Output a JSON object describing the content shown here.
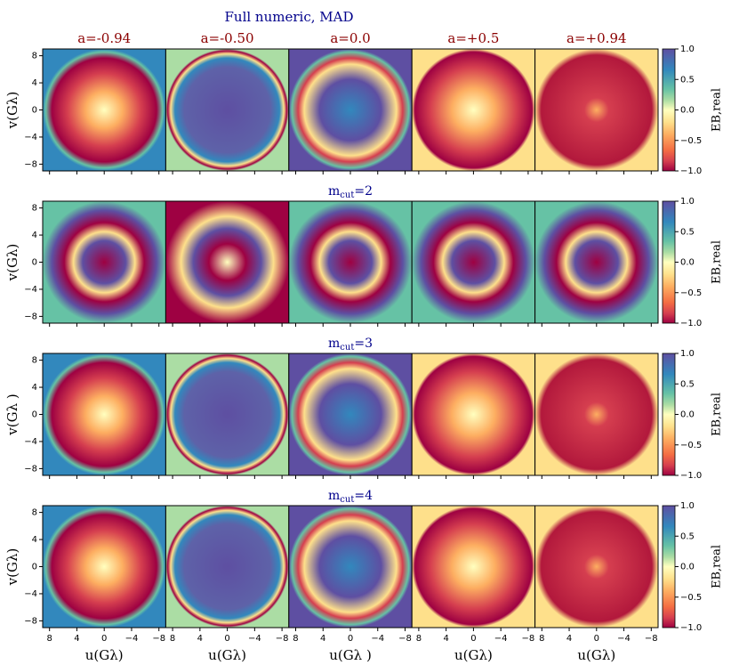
{
  "chart_data": {
    "type": "heatmap",
    "title": "Full numeric, MAD",
    "columns": [
      "a=-0.94",
      "a=-0.50",
      "a=0.0",
      "a=+0.5",
      "a=+0.94"
    ],
    "rows": [
      {
        "ylabel": "v(Gλ)"
      },
      {
        "title": {
          "base": "m",
          "sub": "cut",
          "rest": "=2"
        },
        "ylabel": "v(Gλ)"
      },
      {
        "title": {
          "base": "m",
          "sub": "cut",
          "rest": "=3"
        },
        "ylabel": "v(Gλ )"
      },
      {
        "title": {
          "base": "m",
          "sub": "cut",
          "rest": "=4"
        },
        "ylabel": "v(Gλ)"
      }
    ],
    "xlabels": [
      "u(Gλ)",
      "u(Gλ)",
      "u(Gλ )",
      "u(Gλ)",
      "u(Gλ)"
    ],
    "xlim": [
      9,
      -9
    ],
    "xticks": [
      8,
      4,
      0,
      {
        "value": -4,
        "label": "−4"
      },
      {
        "value": -8,
        "label": "−8"
      }
    ],
    "ylim": [
      -9,
      9
    ],
    "yticks": [
      8,
      4,
      0,
      {
        "value": -4,
        "label": "−4"
      },
      {
        "value": -8,
        "label": "−8"
      }
    ],
    "colorbar": {
      "label": "EB,real",
      "lim": [
        -1,
        1
      ],
      "ticks": [
        {
          "value": 1,
          "label": "1.0"
        },
        0.5,
        {
          "value": 0,
          "label": "0.0"
        },
        {
          "value": -0.5,
          "label": "−0.5"
        },
        {
          "value": -1,
          "label": "−1.0"
        }
      ]
    }
  }
}
